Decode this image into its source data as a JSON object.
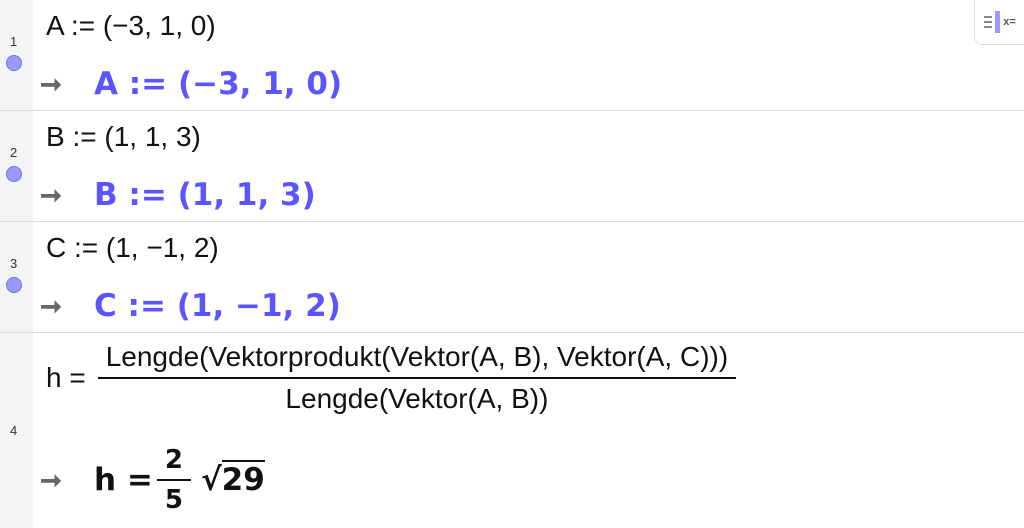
{
  "rows": [
    {
      "number": "1",
      "input": "A := (−3, 1, 0)",
      "output": "A := (−3, 1, 0)"
    },
    {
      "number": "2",
      "input": "B := (1, 1, 3)",
      "output": "B := (1, 1, 3)"
    },
    {
      "number": "3",
      "input": "C := (1, −1, 2)",
      "output": "C := (1, −1, 2)"
    },
    {
      "number": "4",
      "input_lhs": "h =",
      "input_numerator": "Lengde(Vektorprodukt(Vektor(A, B), Vektor(A, C)))",
      "input_denominator": "Lengde(Vektor(A, B))",
      "output_lhs": "h =",
      "output_numerator": "2",
      "output_denominator": "5",
      "output_radicand": "29"
    }
  ],
  "output_arrow": "➞",
  "toggle_label": "x=",
  "colors": {
    "output": "#5b55ff",
    "dot": "#9999ff",
    "gutter": "#f4f4f4"
  }
}
